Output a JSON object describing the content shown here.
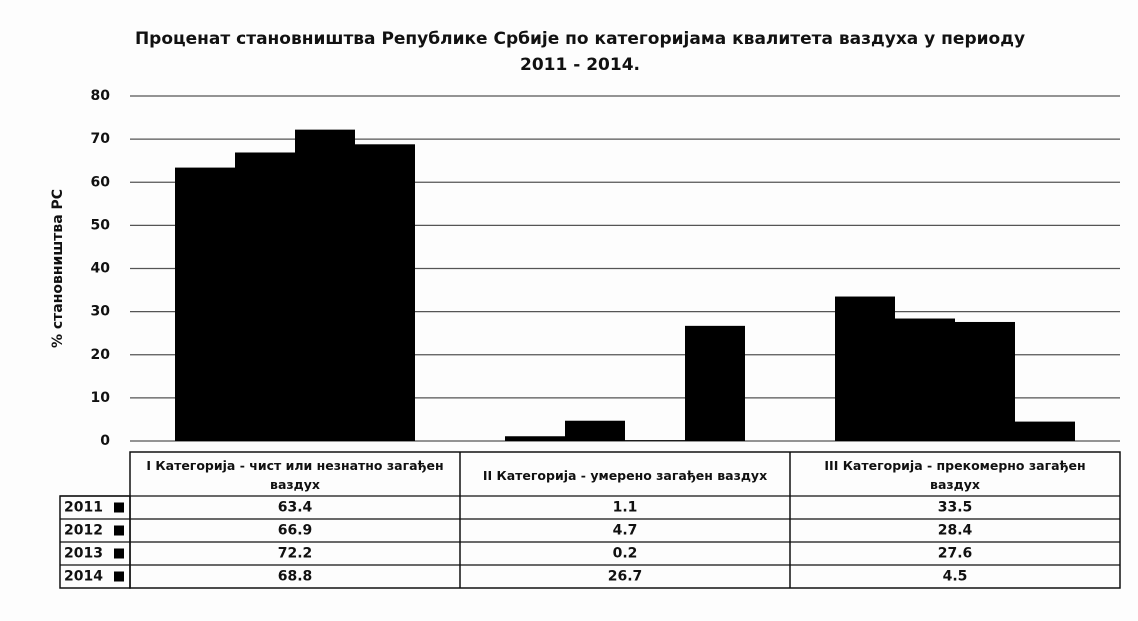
{
  "chart_data": {
    "type": "bar",
    "title": "Проценат становништва Републике Србије по категоријама квалитета ваздуха у периоду 2011 - 2014.",
    "y_label": "% становништва РС",
    "categories": [
      "I  Категорија -  чист или незнатно загађен ваздух",
      "II  Категорија -  умерено загађен ваздух",
      "III  Категорија - прекомерно загађен ваздух"
    ],
    "series": [
      {
        "name": "2011",
        "color": "#000000",
        "values": [
          63.4,
          1.1,
          33.5
        ]
      },
      {
        "name": "2012",
        "color": "#000000",
        "values": [
          66.9,
          4.7,
          28.4
        ]
      },
      {
        "name": "2013",
        "color": "#000000",
        "values": [
          72.2,
          0.2,
          27.6
        ]
      },
      {
        "name": "2014",
        "color": "#000000",
        "values": [
          68.8,
          26.7,
          4.5
        ]
      }
    ],
    "ylim": [
      0,
      80
    ],
    "yticks": [
      0,
      10,
      20,
      30,
      40,
      50,
      60,
      70,
      80
    ],
    "grid": true
  }
}
